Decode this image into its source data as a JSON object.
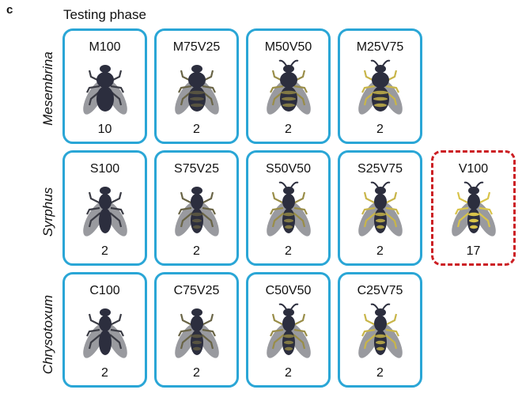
{
  "panel_letter": "c",
  "title": "Testing phase",
  "colors": {
    "card_border": "#2aa6d6",
    "model_border": "#cc1f24",
    "fly_dark": "#2c2e3e",
    "wasp_yellow": "#d8c34a",
    "wing": "#8e8f95"
  },
  "rows": [
    {
      "label": "Mesembrina",
      "cards": [
        {
          "label": "M100",
          "count": "10",
          "icon": "fly-icon",
          "mix": 0
        },
        {
          "label": "M75V25",
          "count": "2",
          "icon": "fly-icon",
          "mix": 0.25
        },
        {
          "label": "M50V50",
          "count": "2",
          "icon": "fly-icon",
          "mix": 0.5
        },
        {
          "label": "M25V75",
          "count": "2",
          "icon": "fly-icon",
          "mix": 0.75
        }
      ]
    },
    {
      "label": "Syrphus",
      "cards": [
        {
          "label": "S100",
          "count": "2",
          "icon": "hoverfly-icon",
          "mix": 0
        },
        {
          "label": "S75V25",
          "count": "2",
          "icon": "hoverfly-icon",
          "mix": 0.25
        },
        {
          "label": "S50V50",
          "count": "2",
          "icon": "hoverfly-icon",
          "mix": 0.5
        },
        {
          "label": "S25V75",
          "count": "2",
          "icon": "hoverfly-icon",
          "mix": 0.75
        }
      ],
      "model": {
        "label": "V100",
        "count": "17",
        "icon": "wasp-icon",
        "mix": 1
      }
    },
    {
      "label": "Chrysotoxum",
      "cards": [
        {
          "label": "C100",
          "count": "2",
          "icon": "hoverfly-icon",
          "mix": 0
        },
        {
          "label": "C75V25",
          "count": "2",
          "icon": "hoverfly-icon",
          "mix": 0.25
        },
        {
          "label": "C50V50",
          "count": "2",
          "icon": "hoverfly-icon",
          "mix": 0.5
        },
        {
          "label": "C25V75",
          "count": "2",
          "icon": "hoverfly-icon",
          "mix": 0.75
        }
      ]
    }
  ]
}
